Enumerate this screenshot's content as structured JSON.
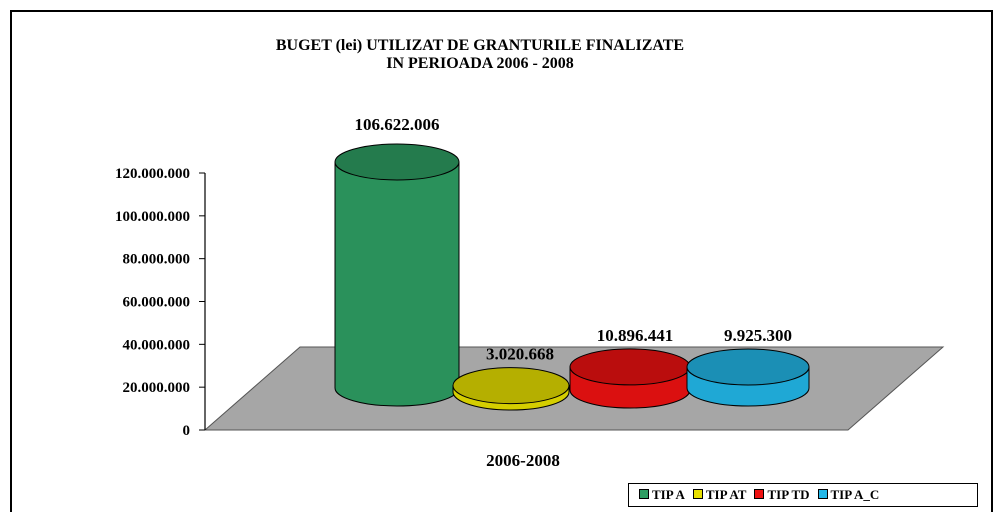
{
  "chart_data": {
    "type": "bar",
    "title_lines": [
      "BUGET (lei) UTILIZAT DE GRANTURILE FINALIZATE",
      "IN PERIOADA 2006 - 2008"
    ],
    "categories": [
      "2006-2008"
    ],
    "xlabel": "2006-2008",
    "ylim": [
      0,
      120000000
    ],
    "yticks": [
      "0",
      "20.000.000",
      "40.000.000",
      "60.000.000",
      "80.000.000",
      "100.000.000",
      "120.000.000"
    ],
    "series": [
      {
        "name": "TIP A",
        "values": [
          106622006
        ],
        "label": "106.622.006",
        "color": "#2e9e63"
      },
      {
        "name": "TIP AT",
        "values": [
          3020668
        ],
        "label": "3.020.668",
        "color": "#e8e000"
      },
      {
        "name": "TIP TD",
        "values": [
          10896441
        ],
        "label": "10.896.441",
        "color": "#ee1111"
      },
      {
        "name": "TIP A_C",
        "values": [
          9925300
        ],
        "label": "9.925.300",
        "color": "#22b7e8"
      }
    ],
    "legend_items": [
      "TIP A",
      "TIP AT",
      "TIP TD",
      "TIP A_C"
    ],
    "legend_position": "bottom-right",
    "grid": false,
    "style": "3d-cylinder"
  }
}
